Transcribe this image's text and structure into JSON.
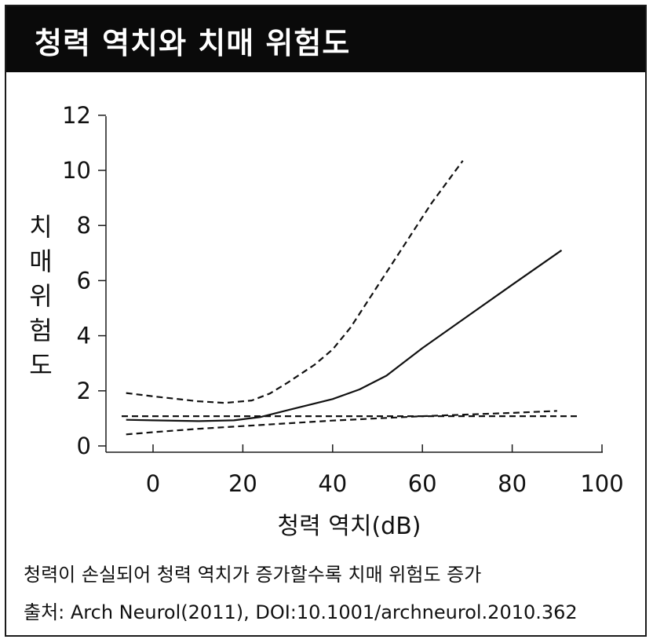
{
  "header": {
    "title": "청력 역치와 치매 위험도"
  },
  "caption": "청력이 손실되어 청력 역치가 증가할수록 치매 위험도 증가",
  "source": "출처: Arch Neurol(2011), DOI:10.1001/archneurol.2010.362",
  "chart_data": {
    "type": "line",
    "title": "청력 역치와 치매 위험도",
    "xlabel": "청력 역치(dB)",
    "ylabel": "치매위험도",
    "xlim": [
      -8,
      100
    ],
    "ylim": [
      0,
      12
    ],
    "xticks": [
      0,
      20,
      40,
      60,
      80,
      100
    ],
    "yticks": [
      0,
      2,
      4,
      6,
      8,
      10,
      12
    ],
    "grid": false,
    "series": [
      {
        "style": "solid",
        "points": [
          [
            -6,
            0.95
          ],
          [
            0,
            0.93
          ],
          [
            10,
            0.9
          ],
          [
            18,
            0.93
          ],
          [
            24,
            1.05
          ],
          [
            30,
            1.3
          ],
          [
            40,
            1.7
          ],
          [
            46,
            2.05
          ],
          [
            52,
            2.55
          ],
          [
            60,
            3.55
          ],
          [
            70,
            4.7
          ],
          [
            80,
            5.85
          ],
          [
            91,
            7.1
          ]
        ]
      },
      {
        "style": "dashed",
        "points": [
          [
            -6,
            1.92
          ],
          [
            0,
            1.8
          ],
          [
            10,
            1.62
          ],
          [
            16,
            1.56
          ],
          [
            22,
            1.65
          ],
          [
            26,
            1.9
          ],
          [
            30,
            2.3
          ],
          [
            36,
            2.95
          ],
          [
            40,
            3.5
          ],
          [
            44,
            4.3
          ],
          [
            50,
            5.8
          ],
          [
            56,
            7.3
          ],
          [
            62,
            8.8
          ],
          [
            69,
            10.35
          ]
        ]
      },
      {
        "style": "dashed",
        "points": [
          [
            -6,
            0.42
          ],
          [
            0,
            0.5
          ],
          [
            10,
            0.62
          ],
          [
            20,
            0.72
          ],
          [
            30,
            0.82
          ],
          [
            40,
            0.92
          ],
          [
            50,
            1.0
          ],
          [
            60,
            1.08
          ],
          [
            70,
            1.14
          ],
          [
            80,
            1.2
          ],
          [
            90,
            1.27
          ]
        ]
      },
      {
        "style": "dashed",
        "points": [
          [
            -7,
            1.08
          ],
          [
            95,
            1.08
          ]
        ]
      }
    ]
  }
}
